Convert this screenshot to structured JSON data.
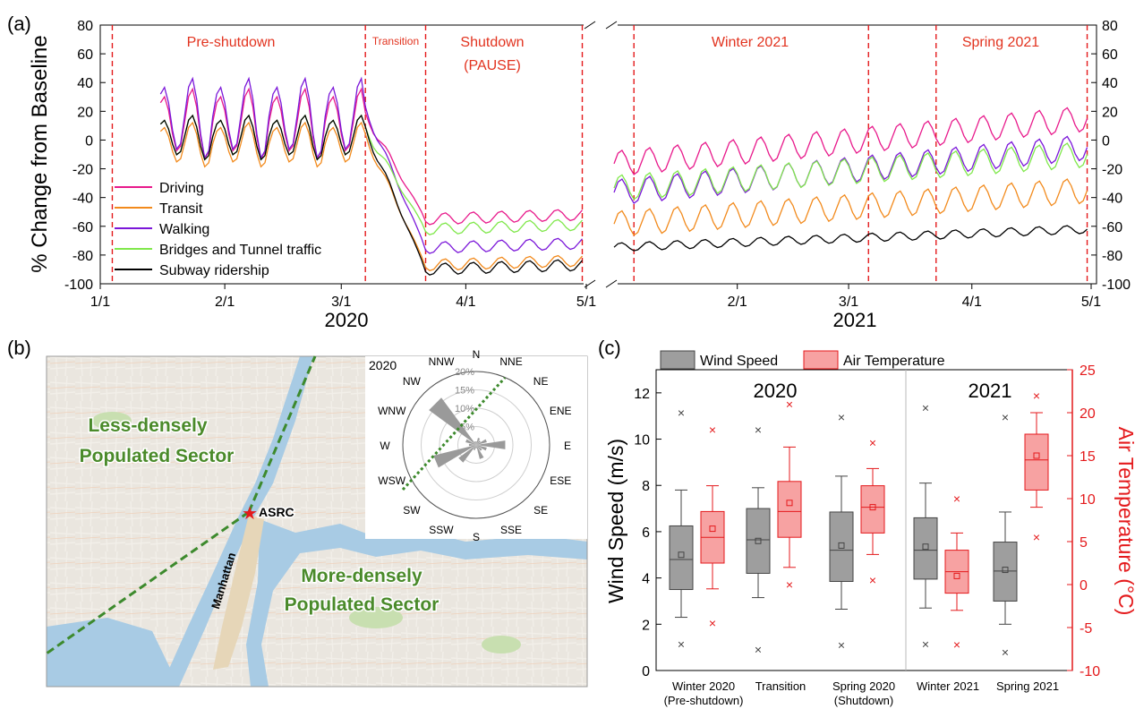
{
  "panel_labels": [
    "(a)",
    "(b)",
    "(c)"
  ],
  "colors": {
    "driving": "#e8198b",
    "transit": "#f28a1c",
    "walking": "#7b17d9",
    "bridges": "#7fe84a",
    "subway": "#000000",
    "period_line": "#e41a1c",
    "period_text": "#e2331f",
    "map_text": "#4a8a2a",
    "wind_box": "#9e9e9e",
    "temp_box": "#f7a2a2",
    "temp_axis": "#e41a1c"
  },
  "chart_data": [
    {
      "type": "line",
      "panel": "(a)",
      "ylabel": "% Change from Baseline",
      "ylim": [
        -100,
        80
      ],
      "yticks": [
        "80",
        "60",
        "40",
        "20",
        "0",
        "-20",
        "-40",
        "-60",
        "-80",
        "-100"
      ],
      "x_segment_2020": {
        "year_label": "2020",
        "ticks": [
          "1/1",
          "2/1",
          "3/1",
          "4/1",
          "5/1"
        ]
      },
      "x_segment_2021": {
        "year_label": "2021",
        "ticks": [
          "1/1",
          "2/1",
          "3/1",
          "4/1",
          "5/1"
        ]
      },
      "periods": [
        "Pre-shutdown",
        "Transition",
        "Shutdown",
        "(PAUSE)",
        "Winter 2021",
        "Spring 2021"
      ],
      "legend": [
        "Driving",
        "Transit",
        "Walking",
        "Bridges and Tunnel traffic",
        "Subway ridership"
      ],
      "series_summary": [
        {
          "name": "Driving",
          "pre_shutdown_range": [
            -10,
            45
          ],
          "shutdown_level": -55,
          "spring_2021_level": 15
        },
        {
          "name": "Transit",
          "pre_shutdown_range": [
            -15,
            20
          ],
          "shutdown_level": -87,
          "spring_2021_level": -35
        },
        {
          "name": "Walking",
          "pre_shutdown_range": [
            -10,
            53
          ],
          "shutdown_level": -75,
          "spring_2021_level": -5
        },
        {
          "name": "Bridges and Tunnel traffic",
          "pre_shutdown_range": [
            -10,
            25
          ],
          "shutdown_level": -62,
          "spring_2021_level": -10
        },
        {
          "name": "Subway ridership",
          "pre_shutdown_range": [
            -10,
            25
          ],
          "shutdown_level": -90,
          "spring_2021_level": -62
        }
      ]
    },
    {
      "type": "box",
      "panel": "(c)",
      "categories": [
        "Winter 2020\n(Pre-shutdown)",
        "Transition",
        "Spring 2020\n(Shutdown)",
        "Winter 2021",
        "Spring 2021"
      ],
      "legend": [
        "Wind Speed",
        "Air Temperature"
      ],
      "group_labels": [
        "2020",
        "2021"
      ],
      "ylabel_left": "Wind Speed (m/s)",
      "ylim_left": [
        0,
        13
      ],
      "yticks_left": [
        "0",
        "2",
        "4",
        "6",
        "8",
        "10",
        "12"
      ],
      "ylabel_right": "Air Temperature (°C)",
      "ylim_right": [
        -10,
        25
      ],
      "yticks_right": [
        "-10",
        "-5",
        "0",
        "5",
        "10",
        "15",
        "20",
        "25"
      ],
      "wind_speed": [
        {
          "min": 1.15,
          "whisker_low": 2.3,
          "q1": 3.5,
          "median": 4.8,
          "mean": 5.0,
          "q3": 6.25,
          "whisker_high": 7.8,
          "max": 11.15
        },
        {
          "min": 0.9,
          "whisker_low": 3.15,
          "q1": 4.2,
          "median": 5.65,
          "mean": 5.6,
          "q3": 7.0,
          "whisker_high": 7.9,
          "max": 10.4
        },
        {
          "min": 1.1,
          "whisker_low": 2.65,
          "q1": 3.85,
          "median": 5.2,
          "mean": 5.4,
          "q3": 6.85,
          "whisker_high": 8.4,
          "max": 10.95
        },
        {
          "min": 1.15,
          "whisker_low": 2.7,
          "q1": 3.95,
          "median": 5.2,
          "mean": 5.35,
          "q3": 6.6,
          "whisker_high": 8.1,
          "max": 11.35
        },
        {
          "min": 0.8,
          "whisker_low": 2.0,
          "q1": 3.0,
          "median": 4.3,
          "mean": 4.35,
          "q3": 5.55,
          "whisker_high": 6.85,
          "max": 10.95
        }
      ],
      "air_temperature": [
        {
          "min": -4.5,
          "whisker_low": -0.5,
          "q1": 2.5,
          "median": 5.5,
          "mean": 6.5,
          "q3": 8.5,
          "whisker_high": 11.5,
          "max": 18.0
        },
        {
          "min": 0.0,
          "whisker_low": 2.0,
          "q1": 5.5,
          "median": 8.5,
          "mean": 9.5,
          "q3": 12.0,
          "whisker_high": 16.0,
          "max": 21.0
        },
        {
          "min": 0.5,
          "whisker_low": 3.5,
          "q1": 6.0,
          "median": 9.0,
          "mean": 9.0,
          "q3": 11.5,
          "whisker_high": 13.5,
          "max": 16.5
        },
        {
          "min": -7.0,
          "whisker_low": -3.0,
          "q1": -1.0,
          "median": 1.5,
          "mean": 1.0,
          "q3": 4.0,
          "whisker_high": 6.0,
          "max": 10.0
        },
        {
          "min": 5.5,
          "whisker_low": 9.0,
          "q1": 11.0,
          "median": 14.5,
          "mean": 15.0,
          "q3": 17.5,
          "whisker_high": 20.0,
          "max": 22.0
        }
      ]
    }
  ],
  "map": {
    "sector_top_line1": "Less-densely",
    "sector_top_line2": "Populated Sector",
    "sector_bottom_line1": "More-densely",
    "sector_bottom_line2": "Populated Sector",
    "station_label": "ASRC",
    "borough_label": "Manhattan",
    "rose_year": "2020",
    "rose_directions": [
      "N",
      "NNE",
      "NE",
      "ENE",
      "E",
      "ESE",
      "SE",
      "SSE",
      "S",
      "SSW",
      "SW",
      "WSW",
      "W",
      "WNW",
      "NW",
      "NNW"
    ],
    "rose_values_pct": [
      1,
      2,
      1.5,
      3,
      8,
      3,
      2,
      4,
      1,
      1.5,
      6,
      12,
      2,
      3,
      16,
      1
    ],
    "rose_rings": [
      "5%",
      "10%",
      "15%",
      "20%"
    ]
  }
}
